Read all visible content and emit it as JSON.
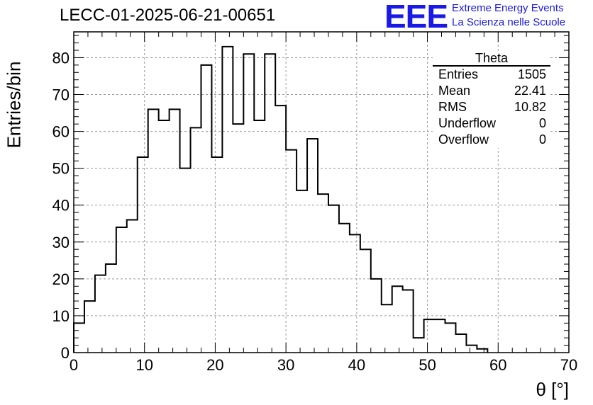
{
  "header": {
    "title": "LECC-01-2025-06-21-00651",
    "logo_text": "EEE",
    "brand_line1": "Extreme Energy Events",
    "brand_line2": "La Scienza nelle Scuole",
    "brand_color": "#1a1ae6"
  },
  "stats_box": {
    "title": "Theta",
    "rows": [
      {
        "label": "Entries",
        "value": "1505"
      },
      {
        "label": "Mean",
        "value": "22.41"
      },
      {
        "label": "RMS",
        "value": "10.82"
      },
      {
        "label": "Underflow",
        "value": "0"
      },
      {
        "label": "Overflow",
        "value": "0"
      }
    ]
  },
  "chart_data": {
    "type": "bar",
    "style": "step-histogram",
    "xlabel": "θ [°]",
    "ylabel": "Entries/bin",
    "xlim": [
      0,
      70
    ],
    "ylim": [
      0,
      87
    ],
    "x_ticks": [
      0,
      10,
      20,
      30,
      40,
      50,
      60,
      70
    ],
    "y_ticks": [
      0,
      10,
      20,
      30,
      40,
      50,
      60,
      70,
      80
    ],
    "grid": true,
    "bin_width": 1.5,
    "bin_start": 0,
    "values": [
      8,
      14,
      21,
      24,
      34,
      36,
      53,
      66,
      63,
      66,
      50,
      61,
      78,
      53,
      83,
      62,
      81,
      63,
      81,
      67,
      55,
      44,
      58,
      43,
      40,
      35,
      32,
      28,
      20,
      13,
      18,
      17,
      4,
      9,
      9,
      8,
      5,
      2,
      1,
      0,
      0,
      0,
      0,
      0,
      0,
      0
    ]
  }
}
